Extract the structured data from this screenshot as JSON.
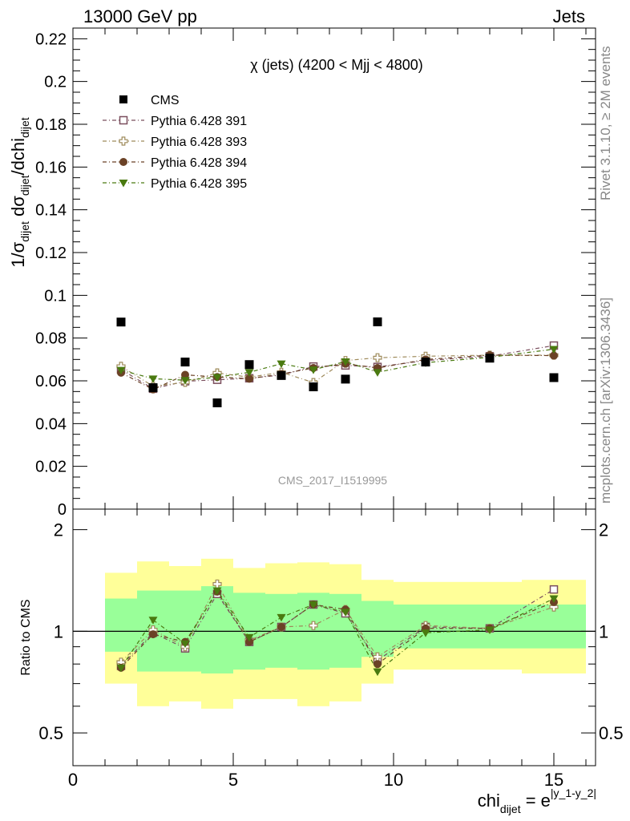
{
  "header": {
    "left": "13000 GeV pp",
    "right": "Jets"
  },
  "side_labels": {
    "top": "Rivet 3.1.10, ≥ 2M events",
    "bottom": "mcplots.cern.ch [arXiv:1306.3436]"
  },
  "watermark": "CMS_2017_I1519995",
  "colors": {
    "data": "#000000",
    "p391": "#7b4f5e",
    "p393": "#9e8a5a",
    "p394": "#6b4226",
    "p395": "#4a7a10",
    "band_inner": "#99ff99",
    "band_outer": "#ffff99"
  },
  "chart_data": [
    {
      "type": "scatter",
      "title": "χ (jets) (4200 < Mjj < 4800)",
      "ylabel_parts": {
        "a": "1/σ",
        "a_sub": "dijet",
        "b": " dσ",
        "b_sub": "dijet",
        "c": "/dchi",
        "c_sub": "dijet"
      },
      "xlim": [
        0,
        16.3
      ],
      "ylim": [
        0,
        0.225
      ],
      "yticks": [
        "0",
        "0.02",
        "0.04",
        "0.06",
        "0.08",
        "0.1",
        "0.12",
        "0.14",
        "0.16",
        "0.18",
        "0.2",
        "0.22"
      ],
      "x": [
        1.5,
        2.5,
        3.5,
        4.5,
        5.5,
        6.5,
        7.5,
        8.5,
        9.5,
        11,
        13,
        15
      ],
      "bin_edges": [
        1,
        2,
        3,
        4,
        5,
        6,
        7,
        8,
        9,
        10,
        12,
        14,
        16
      ],
      "legend_position": "top-left",
      "series": [
        {
          "name": "CMS",
          "marker": "square-filled",
          "values": [
            0.0875,
            0.0568,
            0.0688,
            0.0497,
            0.0676,
            0.0625,
            0.0572,
            0.0608,
            0.0876,
            0.0688,
            0.0706,
            0.0615
          ]
        },
        {
          "name": "Pythia 6.428 391",
          "marker": "square-open",
          "values": [
            0.0653,
            0.0563,
            0.0598,
            0.0605,
            0.0612,
            0.0627,
            0.0667,
            0.0672,
            0.0665,
            0.0695,
            0.0715,
            0.0765
          ]
        },
        {
          "name": "Pythia 6.428 393",
          "marker": "cross-open",
          "values": [
            0.0668,
            0.0575,
            0.0593,
            0.0637,
            0.0617,
            0.064,
            0.0592,
            0.0695,
            0.0708,
            0.0715,
            0.072,
            0.072
          ]
        },
        {
          "name": "Pythia 6.428 394",
          "marker": "circle-filled",
          "values": [
            0.0638,
            0.056,
            0.0628,
            0.0618,
            0.061,
            0.0632,
            0.066,
            0.068,
            0.066,
            0.07,
            0.072,
            0.0718
          ]
        },
        {
          "name": "Pythia 6.428 395",
          "marker": "triangle-down-filled",
          "values": [
            0.065,
            0.061,
            0.0603,
            0.0617,
            0.064,
            0.068,
            0.0652,
            0.069,
            0.064,
            0.0685,
            0.071,
            0.0748
          ]
        }
      ]
    },
    {
      "type": "scatter",
      "ylabel": "Ratio to CMS",
      "xlabel_parts": {
        "main": "chi",
        "sub": "dijet",
        "eq": " = e",
        "sup": "|y_1-y_2|"
      },
      "xlim": [
        0,
        16.3
      ],
      "ylim": [
        0.4,
        2.3
      ],
      "yticks": [
        "0.5",
        "1",
        "2"
      ],
      "xticks": [
        "0",
        "5",
        "10",
        "15"
      ],
      "x": [
        1.5,
        2.5,
        3.5,
        4.5,
        5.5,
        6.5,
        7.5,
        8.5,
        9.5,
        11,
        13,
        15
      ],
      "bin_edges": [
        1,
        2,
        3,
        4,
        5,
        6,
        7,
        8,
        9,
        10,
        12,
        14,
        16
      ],
      "band_inner": {
        "low": [
          0.87,
          0.76,
          0.76,
          0.75,
          0.77,
          0.78,
          0.77,
          0.78,
          0.84,
          0.89,
          0.89,
          0.89
        ],
        "high": [
          1.25,
          1.32,
          1.32,
          1.36,
          1.3,
          1.29,
          1.3,
          1.29,
          1.23,
          1.2,
          1.2,
          1.2
        ]
      },
      "band_outer": {
        "low": [
          0.7,
          0.6,
          0.62,
          0.59,
          0.63,
          0.63,
          0.6,
          0.62,
          0.7,
          0.77,
          0.77,
          0.75
        ],
        "high": [
          1.49,
          1.61,
          1.56,
          1.64,
          1.54,
          1.59,
          1.6,
          1.58,
          1.42,
          1.4,
          1.4,
          1.42
        ]
      },
      "series": [
        {
          "name": "Pythia 6.428 391",
          "marker": "square-open",
          "values": [
            0.79,
            0.99,
            0.89,
            1.29,
            0.93,
            1.03,
            1.2,
            1.13,
            0.82,
            1.03,
            1.02,
            1.33
          ]
        },
        {
          "name": "Pythia 6.428 393",
          "marker": "cross-open",
          "values": [
            0.81,
            1.01,
            0.9,
            1.38,
            0.94,
            1.03,
            1.04,
            1.16,
            0.84,
            1.04,
            1.02,
            1.18
          ]
        },
        {
          "name": "Pythia 6.428 394",
          "marker": "circle-filled",
          "values": [
            0.78,
            0.98,
            0.93,
            1.31,
            0.93,
            1.03,
            1.2,
            1.16,
            0.8,
            1.02,
            1.02,
            1.22
          ]
        },
        {
          "name": "Pythia 6.428 395",
          "marker": "triangle-down-filled",
          "values": [
            0.78,
            1.08,
            0.92,
            1.32,
            0.96,
            1.1,
            1.2,
            1.14,
            0.76,
            0.99,
            1.01,
            1.25
          ]
        }
      ]
    }
  ]
}
